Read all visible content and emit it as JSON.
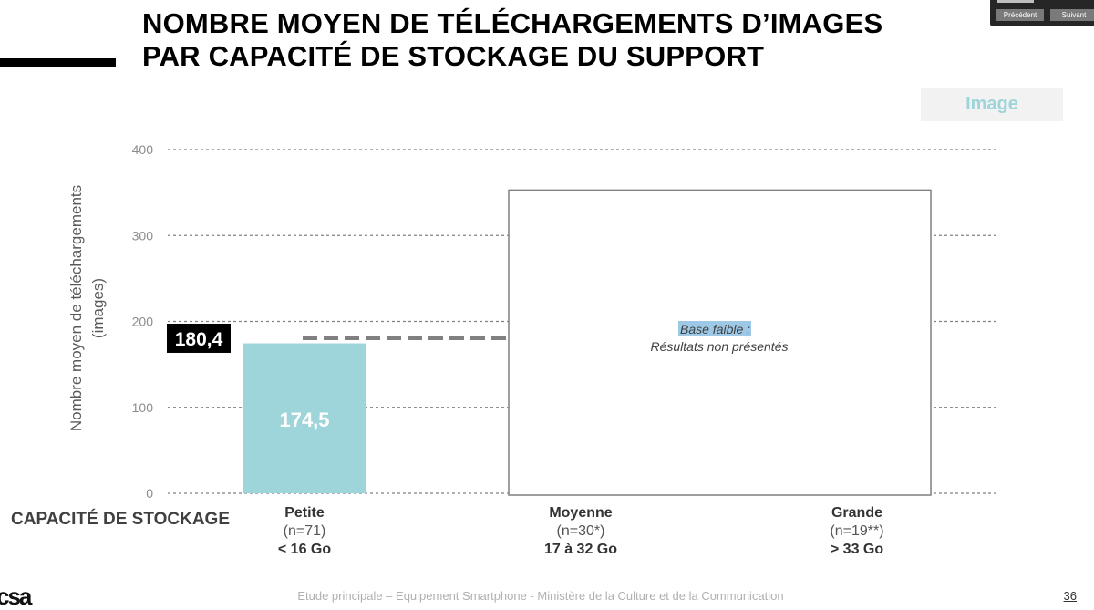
{
  "header": {
    "title_line1": "NOMBRE MOYEN DE TÉLÉCHARGEMENTS D’IMAGES",
    "title_line2": "PAR CAPACITÉ DE STOCKAGE DU SUPPORT"
  },
  "nav": {
    "prev_label": "Précédent",
    "next_label": "Suivant"
  },
  "tab": {
    "label": "Image"
  },
  "chart_data": {
    "type": "bar",
    "ylabel": "Nombre moyen de téléchargements (images)",
    "ylabel_line1": "Nombre moyen de téléchargements",
    "ylabel_line2": "(images)",
    "ylim": [
      0,
      400
    ],
    "yticks": [
      0,
      100,
      200,
      300,
      400
    ],
    "grid": true,
    "categories": [
      "Petite",
      "Moyenne",
      "Grande"
    ],
    "values": [
      174.5,
      null,
      null
    ],
    "value_labels": [
      "174,5",
      "",
      ""
    ],
    "average": {
      "value": 180.4,
      "label": "180,4"
    },
    "suppressed_note": {
      "highlight": "Base faible",
      "rest": " :",
      "line2": "Résultats non présentés"
    },
    "colors": {
      "bar": "#9ed5da",
      "average_label_bg": "#000000",
      "average_line": "#808080",
      "grid": "#808080"
    }
  },
  "axis": {
    "category_title": "CAPACITÉ DE STOCKAGE"
  },
  "categories_info": [
    {
      "name": "Petite",
      "n": "(n=71)",
      "cap": "< 16 Go"
    },
    {
      "name": "Moyenne",
      "n": "(n=30*)",
      "cap": "17 à 32 Go"
    },
    {
      "name": "Grande",
      "n": "(n=19**)",
      "cap": "> 33 Go"
    }
  ],
  "footer": {
    "text": "Etude principale – Equipement Smartphone - Ministère de la Culture et de la Communication",
    "page": "36",
    "logo": "csa"
  }
}
